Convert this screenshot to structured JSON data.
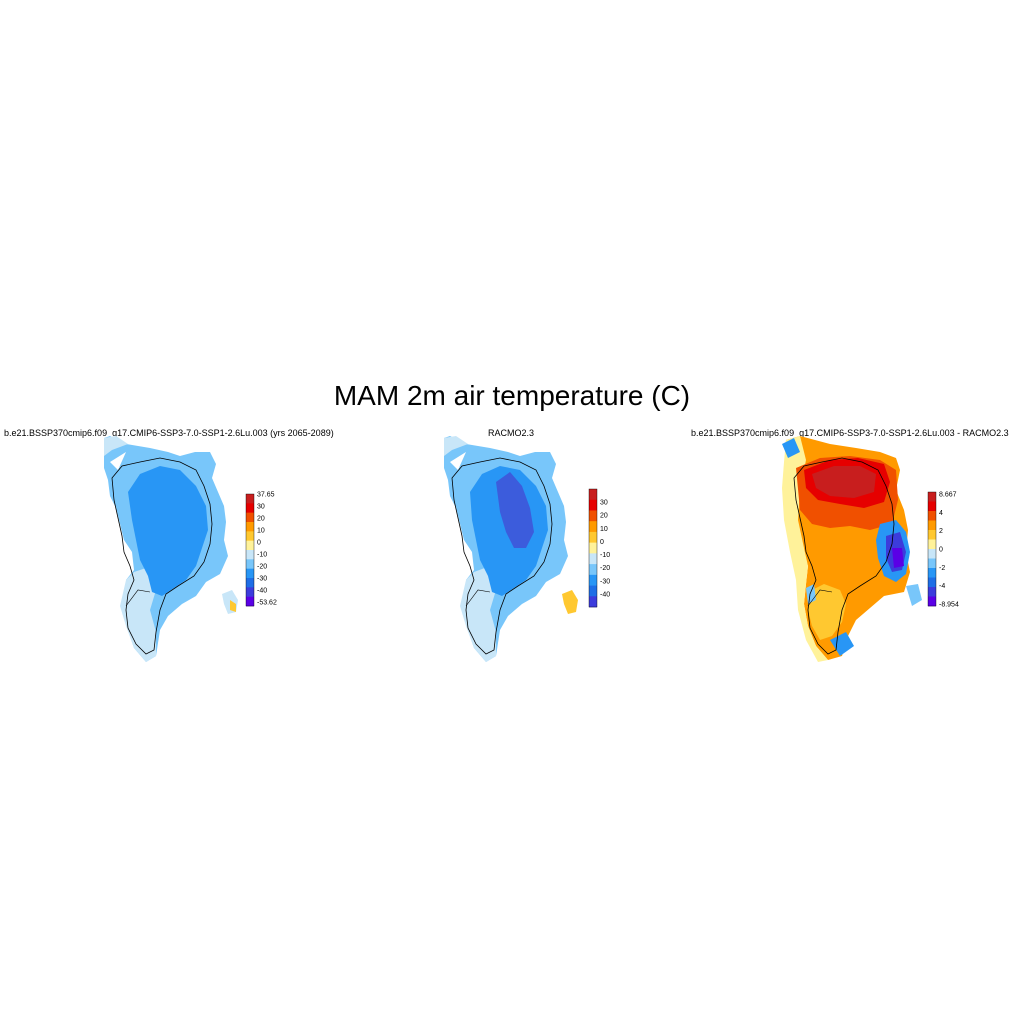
{
  "title": "MAM 2m air temperature (C)",
  "panels": [
    {
      "title": "b.e21.BSSP370cmip6.f09_g17.CMIP6-SSP3-7.0-SSP1-2.6Lu.003 (yrs 2065-2089)",
      "colorbar": {
        "labels": [
          "37.65",
          "30",
          "20",
          "10",
          "0",
          "-10",
          "-20",
          "-30",
          "-40",
          "-53.62"
        ]
      }
    },
    {
      "title": "RACMO2.3",
      "colorbar": {
        "labels": [
          "30",
          "20",
          "10",
          "0",
          "-10",
          "-20",
          "-30",
          "-40"
        ]
      }
    },
    {
      "title": "b.e21.BSSP370cmip6.f09_g17.CMIP6-SSP3-7.0-SSP1-2.6Lu.003 - RACMO2.3",
      "colorbar": {
        "labels": [
          "8.667",
          "4",
          "2",
          "0",
          "-2",
          "-4",
          "-8.954"
        ]
      }
    }
  ],
  "colors": {
    "temperature_scale": [
      "#c81e1e",
      "#e60000",
      "#f05000",
      "#ff9a00",
      "#ffc830",
      "#fff29a",
      "#c8e6f8",
      "#78c6fa",
      "#2896f5",
      "#1e6ee6",
      "#3c3cdc",
      "#5a00e6"
    ],
    "difference_scale": [
      "#c81e1e",
      "#e60000",
      "#f05000",
      "#ff9a00",
      "#ffc830",
      "#fff29a",
      "#c8e6f8",
      "#78c6fa",
      "#2896f5",
      "#1e6ee6",
      "#3c3cdc",
      "#5a00e6"
    ]
  }
}
